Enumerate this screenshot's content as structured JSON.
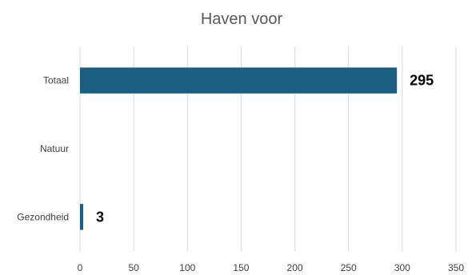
{
  "chart_data": {
    "type": "bar",
    "orientation": "horizontal",
    "title": "Haven voor",
    "categories": [
      "Totaal",
      "Natuur",
      "Gezondheid"
    ],
    "values": [
      295,
      0,
      3
    ],
    "data_labels": [
      "295",
      "",
      "3"
    ],
    "xlim": [
      0,
      350
    ],
    "x_ticks": [
      0,
      50,
      100,
      150,
      200,
      250,
      300,
      350
    ],
    "grid": true,
    "legend": "none",
    "colors": {
      "bar": "#1a5f82"
    }
  }
}
